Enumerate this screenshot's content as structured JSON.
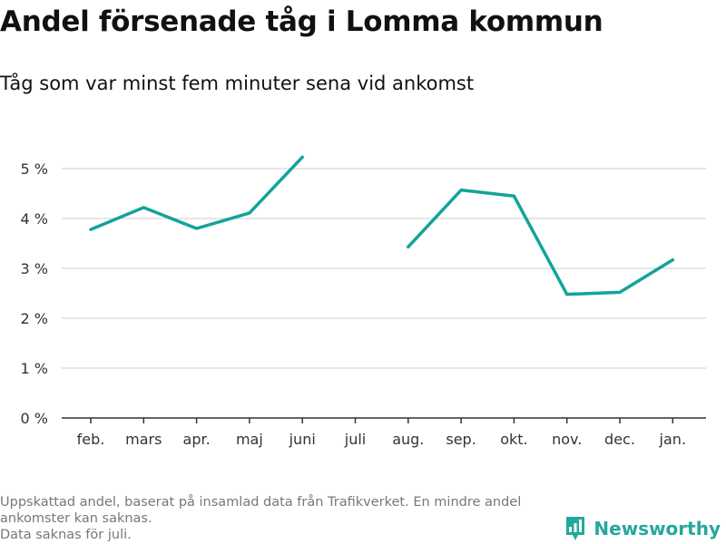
{
  "header": {
    "title": "Andel försenade tåg i Lomma kommun",
    "subtitle": "Tåg som var minst fem minuter sena vid ankomst"
  },
  "footer": {
    "note_line1": "Uppskattad andel, baserat på insamlad data från Trafikverket. En mindre andel ankomster kan saknas.",
    "note_line2": "Data saknas för juli.",
    "brand": "Newsworthy"
  },
  "colors": {
    "line": "#13a39a",
    "grid": "#dddddd",
    "brand": "#24a89a"
  },
  "chart_data": {
    "type": "line",
    "categories": [
      "feb.",
      "mars",
      "apr.",
      "maj",
      "juni",
      "juli",
      "aug.",
      "sep.",
      "okt.",
      "nov.",
      "dec.",
      "jan."
    ],
    "series": [
      {
        "values": [
          3.78,
          4.22,
          3.8,
          4.11,
          5.23,
          null,
          3.43,
          4.57,
          4.45,
          2.48,
          2.52,
          3.17
        ]
      }
    ],
    "ylim": [
      0,
      5
    ],
    "yticks": [
      0,
      1,
      2,
      3,
      4,
      5
    ],
    "ytick_labels": [
      "0 %",
      "1 %",
      "2 %",
      "3 %",
      "4 %",
      "5 %"
    ],
    "grid": true
  }
}
